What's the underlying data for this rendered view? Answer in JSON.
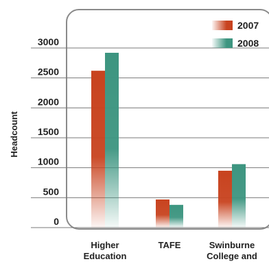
{
  "chart_data": {
    "type": "bar",
    "title": "",
    "xlabel": "",
    "ylabel": "Headcount",
    "categories": [
      [
        "Higher",
        "Education"
      ],
      [
        "TAFE"
      ],
      [
        "Swinburne",
        "College and"
      ]
    ],
    "series": [
      {
        "name": "2007",
        "values": [
          2620,
          470,
          950
        ],
        "color": "#c8431f"
      },
      {
        "name": "2008",
        "values": [
          2920,
          380,
          1060
        ],
        "color": "#3d9580"
      }
    ],
    "yticks": [
      0,
      500,
      1000,
      1500,
      2000,
      2500,
      3000
    ],
    "ylim": [
      0,
      3500
    ],
    "grid": true,
    "legend": "top-right"
  }
}
